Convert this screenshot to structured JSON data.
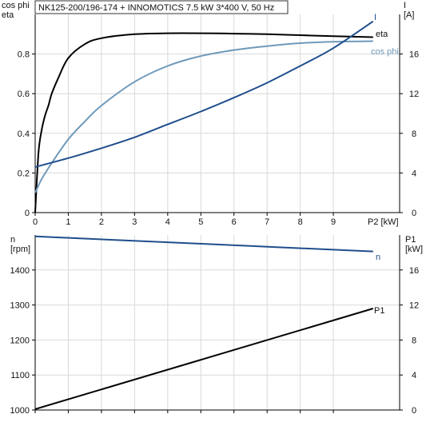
{
  "title": "NK125-200/196-174 + INNOMOTICS   7.5 kW   3*400 V, 50 Hz",
  "chart_data": [
    {
      "type": "line",
      "x_label": "P2 [kW]",
      "xlim": [
        0,
        11
      ],
      "x_ticks": [
        0,
        1,
        2,
        3,
        4,
        5,
        6,
        7,
        8,
        9
      ],
      "left_axis": {
        "label_lines": [
          "cos phi",
          "eta"
        ],
        "ylim": [
          0,
          1.0
        ],
        "ticks": [
          0.0,
          0.2,
          0.4,
          0.6,
          0.8
        ]
      },
      "right_axis": {
        "label_lines": [
          "I",
          "[A]"
        ],
        "ylim": [
          0,
          20
        ],
        "ticks": [
          0,
          4,
          8,
          12,
          16
        ]
      },
      "grid": true,
      "series": [
        {
          "name": "eta",
          "axis": "left",
          "color": "#000000",
          "x": [
            0,
            0.1,
            0.2,
            0.3,
            0.4,
            0.5,
            0.7,
            1.0,
            1.5,
            2.0,
            3.0,
            4.0,
            5.0,
            6.0,
            7.0,
            8.0,
            9.0,
            10.2
          ],
          "y": [
            0,
            0.3,
            0.42,
            0.49,
            0.54,
            0.6,
            0.68,
            0.78,
            0.85,
            0.88,
            0.9,
            0.905,
            0.905,
            0.903,
            0.9,
            0.895,
            0.89,
            0.885
          ]
        },
        {
          "name": "cos phi",
          "axis": "left",
          "color": "#6f99ba",
          "x": [
            0,
            0.2,
            0.5,
            1.0,
            1.5,
            2.0,
            3.0,
            4.0,
            5.0,
            6.0,
            7.0,
            8.0,
            9.0,
            10.2
          ],
          "y": [
            0.1,
            0.17,
            0.25,
            0.37,
            0.46,
            0.54,
            0.66,
            0.74,
            0.79,
            0.82,
            0.84,
            0.855,
            0.862,
            0.865
          ]
        },
        {
          "name": "I",
          "axis": "right",
          "color": "#1f4e8c",
          "x": [
            0,
            1,
            2,
            3,
            4,
            5,
            6,
            7,
            8,
            9,
            10.2
          ],
          "y": [
            4.6,
            5.5,
            6.5,
            7.6,
            8.9,
            10.2,
            11.6,
            13.1,
            14.8,
            16.6,
            19.3
          ]
        }
      ]
    },
    {
      "type": "line",
      "x_label": "",
      "xlim": [
        0,
        11
      ],
      "x_ticks": [
        0,
        1,
        2,
        3,
        4,
        5,
        6,
        7,
        8,
        9
      ],
      "left_axis": {
        "label_lines": [
          "n",
          "[rpm]"
        ],
        "ylim": [
          1000,
          1500
        ],
        "ticks": [
          1000,
          1100,
          1200,
          1300,
          1400
        ]
      },
      "right_axis": {
        "label_lines": [
          "P1",
          "[kW]"
        ],
        "ylim": [
          0,
          20
        ],
        "ticks": [
          0,
          4,
          8,
          12,
          16
        ]
      },
      "grid": true,
      "series": [
        {
          "name": "n",
          "axis": "left",
          "color": "#1f4e8c",
          "x": [
            0,
            10.2
          ],
          "y": [
            1496,
            1453
          ]
        },
        {
          "name": "P1",
          "axis": "right",
          "color": "#000000",
          "x": [
            0,
            10.2
          ],
          "y": [
            0.1,
            11.6
          ]
        }
      ]
    }
  ]
}
